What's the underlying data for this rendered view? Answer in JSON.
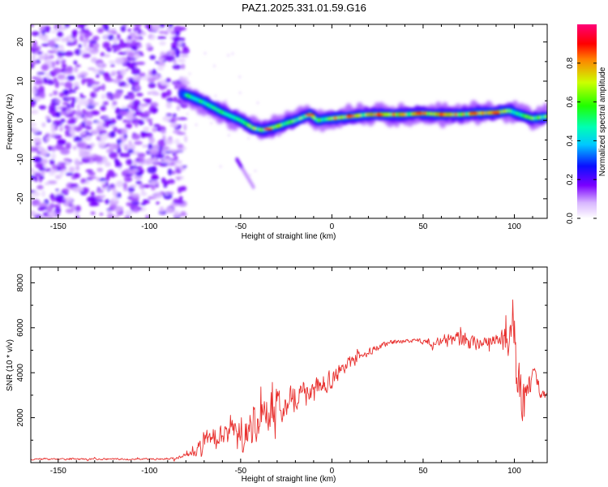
{
  "chart_data": [
    {
      "type": "heatmap",
      "title": "PAZ1.2025.331.01.59.G16",
      "xlabel": "Height of straight line (km)",
      "ylabel": "Frequency (Hz)",
      "xlim": [
        -165,
        118
      ],
      "ylim": [
        -25,
        24.5
      ],
      "xticks": [
        -150,
        -100,
        -50,
        0,
        50,
        100
      ],
      "yticks": [
        -20,
        -10,
        0,
        10,
        20
      ],
      "xtick_labels": [
        "-150",
        "-100",
        "-50",
        "0",
        "50",
        "100"
      ],
      "ytick_labels": [
        "-20",
        "-10",
        "0",
        "10",
        "20"
      ],
      "colorbar": {
        "label": "Normalized spectral amplitude",
        "range": [
          0,
          1
        ],
        "ticks": [
          0.0,
          0.2,
          0.4,
          0.6,
          0.8
        ],
        "tick_labels": [
          "0.0",
          "0.2",
          "0.4",
          "0.6",
          "0.8"
        ],
        "colormap": "rainbow (white-purple-blue-cyan-green-yellow-red-magenta)"
      },
      "noise_region": {
        "x_range": [
          -165,
          -80
        ],
        "y_range": [
          -25,
          24.5
        ],
        "typical_amplitude": 0.1
      },
      "ridge_curve": [
        {
          "x": -80,
          "y": 6.5
        },
        {
          "x": -70,
          "y": 4.5
        },
        {
          "x": -60,
          "y": 2
        },
        {
          "x": -50,
          "y": 0
        },
        {
          "x": -43,
          "y": -2
        },
        {
          "x": -38,
          "y": -2.5
        },
        {
          "x": -30,
          "y": -1.5
        },
        {
          "x": -20,
          "y": 0
        },
        {
          "x": -12,
          "y": 1.5
        },
        {
          "x": -8,
          "y": 0
        },
        {
          "x": 0,
          "y": 0.5
        },
        {
          "x": 10,
          "y": 1
        },
        {
          "x": 20,
          "y": 1.5
        },
        {
          "x": 30,
          "y": 1.5
        },
        {
          "x": 40,
          "y": 1.5
        },
        {
          "x": 50,
          "y": 1.8
        },
        {
          "x": 60,
          "y": 1.5
        },
        {
          "x": 70,
          "y": 1.5
        },
        {
          "x": 80,
          "y": 1.8
        },
        {
          "x": 90,
          "y": 2
        },
        {
          "x": 97,
          "y": 2.5
        },
        {
          "x": 103,
          "y": 1.5
        },
        {
          "x": 110,
          "y": 0.5
        },
        {
          "x": 118,
          "y": 1
        }
      ],
      "secondary_tail": [
        {
          "x": -52,
          "y": -10
        },
        {
          "x": -43,
          "y": -17
        }
      ]
    },
    {
      "type": "line",
      "xlabel": "Height of straight line (km)",
      "ylabel": "SNR (10 * v/v)",
      "xlim": [
        -165,
        118
      ],
      "ylim": [
        0,
        8700
      ],
      "xticks": [
        -150,
        -100,
        -50,
        0,
        50,
        100
      ],
      "yticks": [
        2000,
        4000,
        6000,
        8000
      ],
      "xtick_labels": [
        "-150",
        "-100",
        "-50",
        "0",
        "50",
        "100"
      ],
      "ytick_labels": [
        "2000",
        "4000",
        "6000",
        "8000"
      ],
      "series": [
        {
          "name": "SNR",
          "color": "#e8302e",
          "x": [
            -165,
            -150,
            -130,
            -110,
            -95,
            -85,
            -80,
            -75,
            -70,
            -65,
            -60,
            -55,
            -50,
            -45,
            -40,
            -35,
            -30,
            -25,
            -20,
            -15,
            -10,
            -5,
            0,
            5,
            10,
            15,
            20,
            25,
            30,
            35,
            40,
            45,
            50,
            55,
            60,
            65,
            70,
            75,
            80,
            85,
            90,
            95,
            98,
            100,
            102,
            105,
            110,
            118
          ],
          "y": [
            150,
            150,
            160,
            150,
            160,
            200,
            300,
            500,
            900,
            1300,
            1100,
            1400,
            1700,
            1500,
            1400,
            2200,
            2600,
            2800,
            3000,
            3200,
            3300,
            3500,
            3700,
            4100,
            4400,
            4700,
            4900,
            5100,
            5300,
            5400,
            5400,
            5400,
            5400,
            5300,
            5400,
            5500,
            5450,
            5350,
            5300,
            5400,
            5500,
            5400,
            6000,
            6500,
            3000,
            2500,
            3800,
            2900
          ],
          "noise_amp": [
            50,
            50,
            50,
            50,
            50,
            80,
            150,
            300,
            500,
            600,
            600,
            700,
            900,
            1100,
            1200,
            1100,
            1100,
            1000,
            900,
            800,
            700,
            600,
            500,
            450,
            400,
            300,
            250,
            200,
            150,
            120,
            120,
            150,
            150,
            200,
            300,
            400,
            500,
            500,
            400,
            400,
            400,
            800,
            1600,
            2200,
            2200,
            1500,
            800,
            200
          ]
        }
      ]
    }
  ]
}
